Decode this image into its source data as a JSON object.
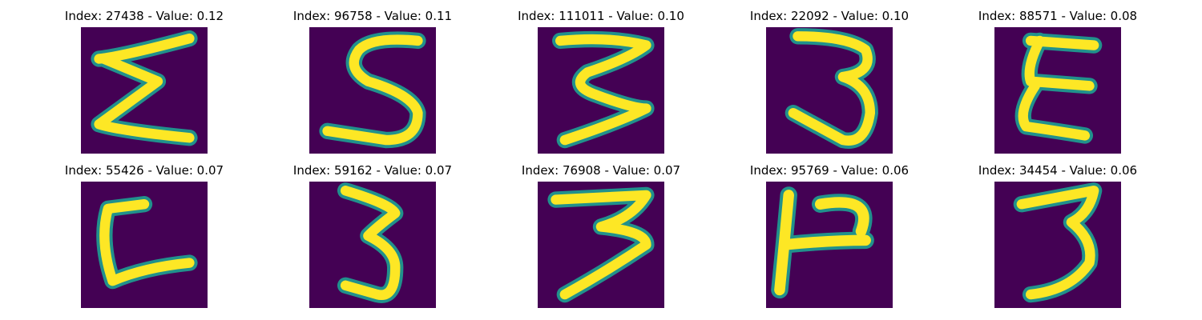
{
  "figure": {
    "colors": {
      "background": "#440154",
      "edge": "#21918c",
      "stroke": "#fde725"
    },
    "panels": [
      {
        "title": "Index: 27438 - Value: 0.12",
        "image": "digit-3-sideways"
      },
      {
        "title": "Index: 96758 - Value: 0.11",
        "image": "digit-5-slanted"
      },
      {
        "title": "Index: 111011 - Value: 0.10",
        "image": "digit-3"
      },
      {
        "title": "Index: 22092 - Value: 0.10",
        "image": "digit-3"
      },
      {
        "title": "Index: 88571 - Value: 0.08",
        "image": "digit-3-sideways"
      },
      {
        "title": "Index: 55426 - Value: 0.07",
        "image": "digit-c-shape"
      },
      {
        "title": "Index: 59162 - Value: 0.07",
        "image": "digit-3"
      },
      {
        "title": "Index: 76908 - Value: 0.07",
        "image": "digit-3"
      },
      {
        "title": "Index: 95769 - Value: 0.06",
        "image": "digit-h-shape"
      },
      {
        "title": "Index: 34454 - Value: 0.06",
        "image": "digit-3"
      }
    ]
  }
}
